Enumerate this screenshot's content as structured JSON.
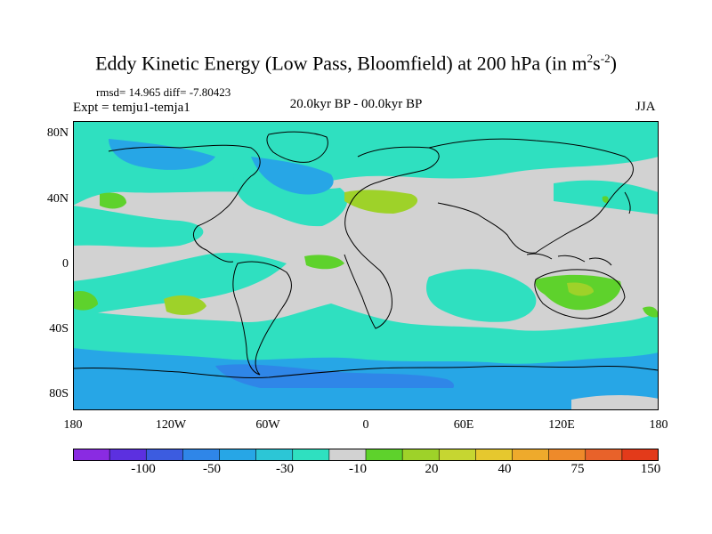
{
  "header": {
    "title": "Eddy Kinetic Energy (Low Pass, Bloomfield) at 200 hPa (in m",
    "title_sup1": "2",
    "title_mid": "s",
    "title_sup2": "-2",
    "title_close": ")",
    "stats": "rmsd= 14.965 diff= -7.80423",
    "expt": "Expt = temju1-temja1",
    "period": "20.0kyr BP - 00.0kyr BP",
    "season": "JJA"
  },
  "axes": {
    "lat_ticks": [
      "80N",
      "40N",
      "0",
      "40S",
      "80S"
    ],
    "lon_ticks": [
      "180",
      "120W",
      "60W",
      "0",
      "60E",
      "120E",
      "180"
    ]
  },
  "colorbar": {
    "labels": [
      "-100",
      "-50",
      "-30",
      "-10",
      "20",
      "40",
      "75",
      "150"
    ],
    "colors": [
      "#8a2be2",
      "#5c30e0",
      "#3c5ce0",
      "#2f86e8",
      "#27a6e6",
      "#2cc6d6",
      "#2fe0c0",
      "#d2d2d2",
      "#5ed22c",
      "#9ed229",
      "#c6d631",
      "#e6c82e",
      "#eeaa2c",
      "#ee8a2a",
      "#e8622a",
      "#e33a1a"
    ]
  },
  "map_colors": {
    "neutral": "#d2d2d2",
    "teal": "#2fe0c0",
    "cyan": "#27a6e6",
    "blue": "#2f86e8",
    "green": "#5ed22c",
    "olive": "#9ed229"
  }
}
